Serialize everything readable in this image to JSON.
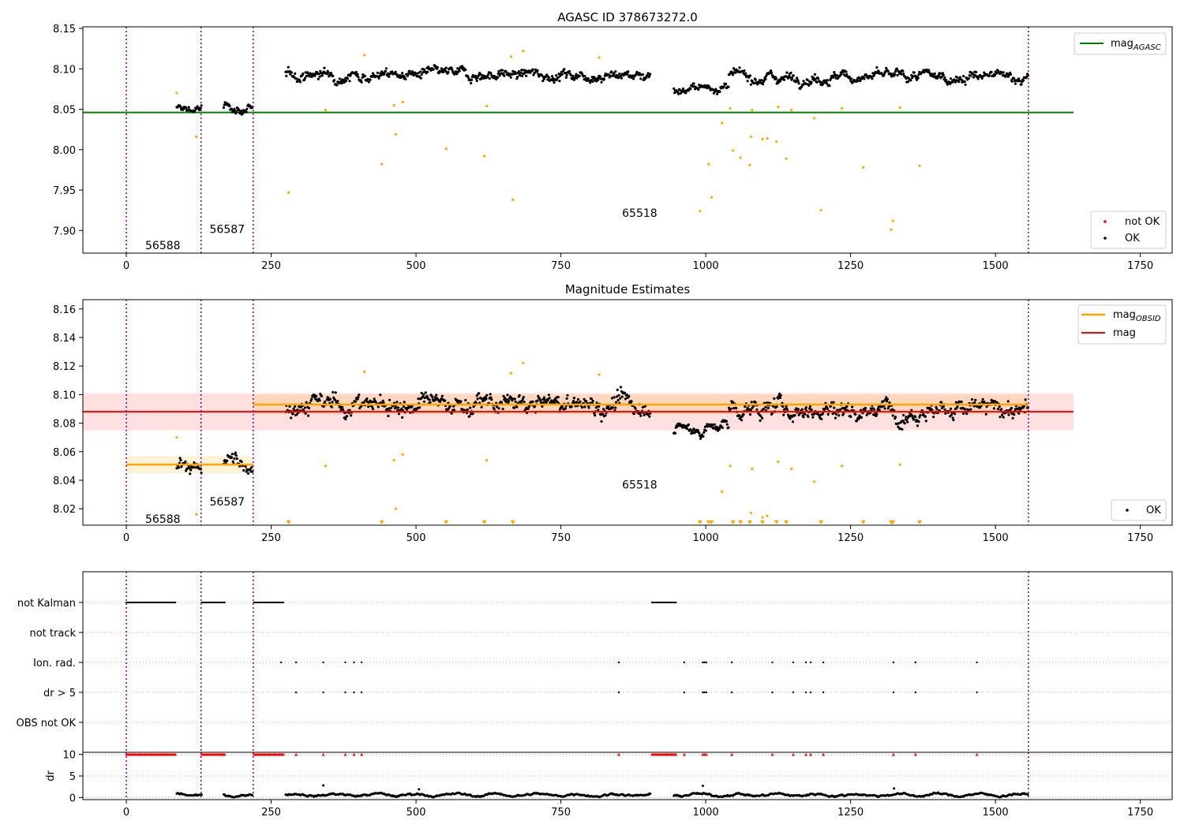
{
  "chart_data": [
    {
      "type": "scatter",
      "title": "AGASC ID 378673272.0",
      "xlim": [
        -75,
        1805
      ],
      "ylim": [
        7.872,
        8.152
      ],
      "xticks": [
        0,
        250,
        500,
        750,
        1000,
        1250,
        1500,
        1750
      ],
      "yticks": [
        7.9,
        7.95,
        8.0,
        8.05,
        8.1,
        8.15
      ],
      "ytick_labels": [
        "7.90",
        "7.95",
        "8.00",
        "8.05",
        "8.10",
        "8.15"
      ],
      "obsid_boundaries": [
        0,
        129,
        219,
        1557
      ],
      "obsid_labels": [
        {
          "text": "56588",
          "x": 63,
          "y": 7.882
        },
        {
          "text": "56587",
          "x": 174,
          "y": 7.902
        },
        {
          "text": "65518",
          "x": 886,
          "y": 7.922
        }
      ],
      "reference_line": {
        "name": "mag",
        "sub": "AGASC",
        "y": 8.046,
        "x0": -75,
        "x1": 1635,
        "color": "#008000"
      },
      "ok_segments": [
        {
          "x0": 87,
          "x1": 130,
          "center": 8.05,
          "trend": 0.0,
          "noise": 0.006
        },
        {
          "x0": 168,
          "x1": 218,
          "center": 8.051,
          "trend": -0.003,
          "noise": 0.006
        },
        {
          "x0": 275,
          "x1": 905,
          "center": 8.093,
          "trend": 0.0,
          "noise": 0.007
        },
        {
          "x0": 945,
          "x1": 1040,
          "center": 8.076,
          "trend": 0.002,
          "noise": 0.005
        },
        {
          "x0": 1040,
          "x1": 1557,
          "center": 8.09,
          "trend": 0.0,
          "noise": 0.007
        }
      ],
      "outliers": [
        [
          87,
          8.07
        ],
        [
          121,
          8.016
        ],
        [
          280,
          7.947
        ],
        [
          344,
          8.049
        ],
        [
          411,
          8.117
        ],
        [
          441,
          7.982
        ],
        [
          462,
          8.055
        ],
        [
          465,
          8.019
        ],
        [
          477,
          8.059
        ],
        [
          552,
          8.001
        ],
        [
          618,
          7.992
        ],
        [
          622,
          8.054
        ],
        [
          664,
          8.115
        ],
        [
          667,
          7.938
        ],
        [
          685,
          8.122
        ],
        [
          816,
          8.114
        ],
        [
          990,
          7.924
        ],
        [
          1005,
          7.982
        ],
        [
          1010,
          7.941
        ],
        [
          1028,
          8.033
        ],
        [
          1042,
          8.051
        ],
        [
          1047,
          7.999
        ],
        [
          1060,
          7.99
        ],
        [
          1076,
          7.981
        ],
        [
          1078,
          8.016
        ],
        [
          1080,
          8.049
        ],
        [
          1098,
          8.013
        ],
        [
          1106,
          8.014
        ],
        [
          1122,
          8.01
        ],
        [
          1125,
          8.053
        ],
        [
          1139,
          7.989
        ],
        [
          1148,
          8.049
        ],
        [
          1187,
          8.039
        ],
        [
          1199,
          7.925
        ],
        [
          1235,
          8.051
        ],
        [
          1272,
          7.978
        ],
        [
          1320,
          7.901
        ],
        [
          1323,
          7.912
        ],
        [
          1335,
          8.052
        ],
        [
          1369,
          7.98
        ]
      ],
      "legend_lines": [
        {
          "name": "mag",
          "sub": "AGASC",
          "color": "#008000"
        }
      ],
      "legend_markers": [
        {
          "name": "not OK",
          "color": "#ff0000"
        },
        {
          "name": "OK",
          "color": "#000000"
        }
      ],
      "outlier_color": "#ffa500"
    },
    {
      "type": "scatter",
      "title": "Magnitude Estimates",
      "xlim": [
        -75,
        1805
      ],
      "ylim": [
        8.0085,
        8.1665
      ],
      "xticks": [
        0,
        250,
        500,
        750,
        1000,
        1250,
        1500,
        1750
      ],
      "yticks": [
        8.02,
        8.04,
        8.06,
        8.08,
        8.1,
        8.12,
        8.14,
        8.16
      ],
      "ytick_labels": [
        "8.02",
        "8.04",
        "8.06",
        "8.08",
        "8.10",
        "8.12",
        "8.14",
        "8.16"
      ],
      "obsid_boundaries": [
        0,
        129,
        219,
        1557
      ],
      "obsid_labels": [
        {
          "text": "56588",
          "x": 63,
          "y": 8.013
        },
        {
          "text": "56587",
          "x": 174,
          "y": 8.025
        },
        {
          "text": "65518",
          "x": 886,
          "y": 8.037
        }
      ],
      "mag_line": {
        "name": "mag",
        "y": 8.088,
        "x0": -75,
        "x1": 1635,
        "band": [
          8.075,
          8.101
        ],
        "color": "#ff0000"
      },
      "obsid_mags": [
        {
          "x0": 0,
          "x1": 219,
          "y": 8.051,
          "band": [
            8.045,
            8.057
          ]
        },
        {
          "x0": 219,
          "x1": 1557,
          "y": 8.093,
          "band": [
            8.086,
            8.1
          ]
        }
      ],
      "ok_segments": [
        {
          "x0": 87,
          "x1": 130,
          "center": 8.049,
          "trend": 0.0,
          "noise": 0.006
        },
        {
          "x0": 168,
          "x1": 218,
          "center": 8.051,
          "trend": -0.003,
          "noise": 0.006
        },
        {
          "x0": 275,
          "x1": 905,
          "center": 8.093,
          "trend": 0.0,
          "noise": 0.007
        },
        {
          "x0": 945,
          "x1": 1040,
          "center": 8.076,
          "trend": 0.002,
          "noise": 0.005
        },
        {
          "x0": 1040,
          "x1": 1557,
          "center": 8.09,
          "trend": 0.0,
          "noise": 0.007
        }
      ],
      "outliers": [
        [
          87,
          8.07
        ],
        [
          121,
          8.016
        ],
        [
          344,
          8.05
        ],
        [
          411,
          8.116
        ],
        [
          462,
          8.054
        ],
        [
          465,
          8.02
        ],
        [
          477,
          8.058
        ],
        [
          622,
          8.054
        ],
        [
          664,
          8.115
        ],
        [
          685,
          8.122
        ],
        [
          816,
          8.114
        ],
        [
          1028,
          8.032
        ],
        [
          1042,
          8.05
        ],
        [
          1080,
          8.048
        ],
        [
          1078,
          8.017
        ],
        [
          1098,
          8.014
        ],
        [
          1106,
          8.015
        ],
        [
          1125,
          8.053
        ],
        [
          1148,
          8.048
        ],
        [
          1187,
          8.039
        ],
        [
          1235,
          8.05
        ],
        [
          1335,
          8.051
        ]
      ],
      "below_range_x": [
        280,
        441,
        552,
        618,
        667,
        990,
        1005,
        1010,
        1047,
        1060,
        1076,
        1098,
        1122,
        1139,
        1199,
        1272,
        1320,
        1323,
        1369
      ],
      "legend_lines": [
        {
          "name": "mag",
          "sub": "OBSID",
          "color": "#ffa500"
        },
        {
          "name": "mag",
          "sub": "",
          "color": "#ff0000"
        }
      ],
      "legend_markers": [
        {
          "name": "OK",
          "color": "#000000"
        }
      ],
      "outlier_color": "#ffa500"
    },
    {
      "type": "scatter",
      "title": "",
      "xlim": [
        -75,
        1805
      ],
      "xticks": [
        0,
        250,
        500,
        750,
        1000,
        1250,
        1500,
        1750
      ],
      "obsid_boundaries": [
        0,
        129,
        219,
        1557
      ],
      "flag_rows": [
        {
          "label": "not Kalman",
          "ranges": [
            [
              0,
              85
            ],
            [
              130,
              170
            ],
            [
              220,
              272
            ],
            [
              907,
              950
            ]
          ],
          "points": []
        },
        {
          "label": "not track",
          "ranges": [],
          "points": []
        },
        {
          "label": "Ion. rad.",
          "ranges": [],
          "points": [
            267,
            293,
            340,
            378,
            393,
            406,
            850,
            963,
            995,
            998,
            1001,
            1045,
            1115,
            1151,
            1173,
            1181,
            1203,
            1324,
            1362,
            1468
          ]
        },
        {
          "label": "dr > 5",
          "ranges": [],
          "points": [
            293,
            340,
            378,
            393,
            406,
            850,
            963,
            995,
            998,
            1001,
            1045,
            1115,
            1151,
            1173,
            1181,
            1203,
            1324,
            1362,
            1468
          ]
        },
        {
          "label": "OBS not OK",
          "ranges": [],
          "points": []
        }
      ],
      "dr_panel": {
        "ylabel": "dr",
        "ylim": [
          -0.5,
          10.5
        ],
        "yticks": [
          0,
          5,
          10
        ],
        "ytick_labels": [
          "0",
          "5",
          "10"
        ],
        "capped_value": 10,
        "capped_ranges": [
          [
            0,
            85
          ],
          [
            130,
            170
          ],
          [
            220,
            272
          ],
          [
            907,
            950
          ]
        ],
        "capped_points": [
          293,
          340,
          378,
          393,
          406,
          850,
          963,
          995,
          998,
          1001,
          1045,
          1115,
          1151,
          1173,
          1181,
          1203,
          1324,
          1362,
          1468
        ],
        "segments": [
          [
            87,
            130
          ],
          [
            168,
            218
          ],
          [
            275,
            905
          ],
          [
            945,
            1557
          ]
        ],
        "typical_value": 0.6,
        "spikes": [
          [
            340,
            2.8
          ],
          [
            505,
            1.9
          ],
          [
            995,
            2.7
          ],
          [
            1325,
            2.1
          ]
        ]
      }
    }
  ]
}
